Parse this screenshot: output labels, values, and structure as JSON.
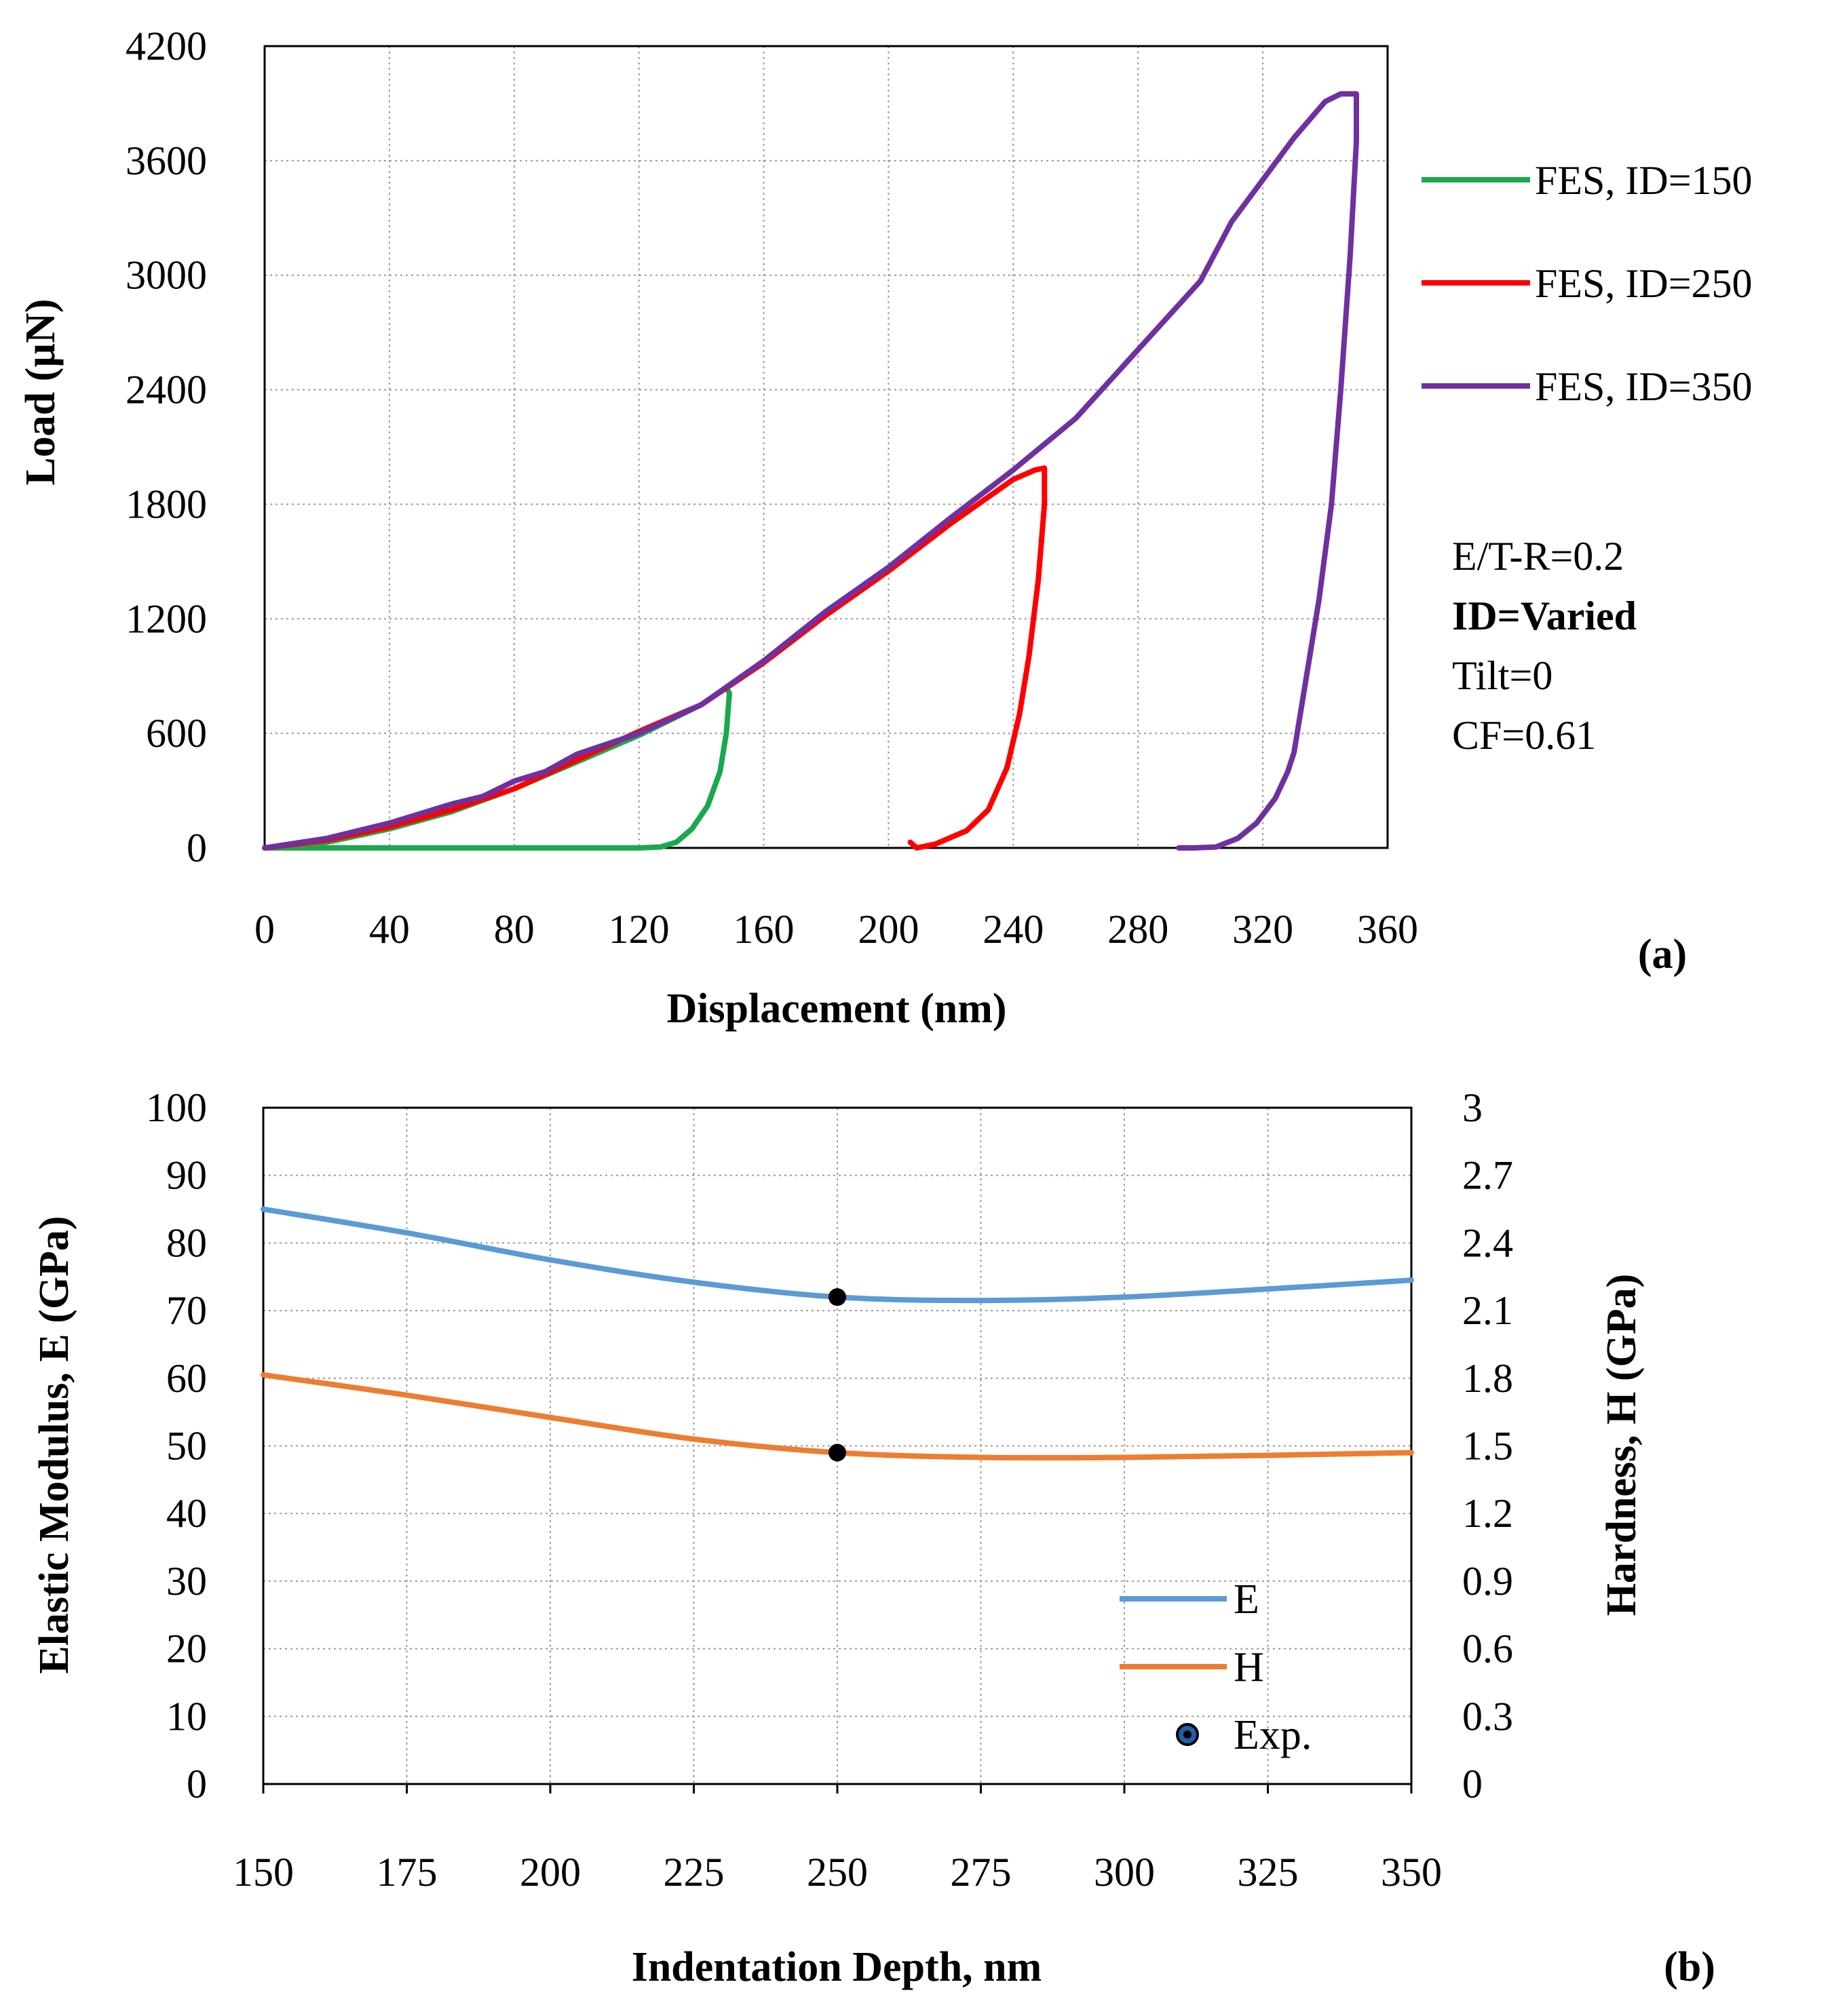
{
  "chart_data": [
    {
      "type": "line",
      "panel_label": "(a)",
      "xlabel": "Displacement (nm)",
      "ylabel": "Load (µN)",
      "xlim": [
        0,
        360
      ],
      "ylim": [
        0,
        4200
      ],
      "xticks": [
        "0",
        "40",
        "80",
        "120",
        "160",
        "200",
        "240",
        "280",
        "320",
        "360"
      ],
      "yticks": [
        "0",
        "600",
        "1200",
        "1800",
        "2400",
        "3000",
        "3600",
        "4200"
      ],
      "grid": true,
      "legend_position": "right",
      "annotation": {
        "line1": "E/T-R=0.2",
        "line2": "ID=Varied",
        "line3": "Tilt=0",
        "line4": "CF=0.61"
      },
      "series": [
        {
          "name": "FES, ID=150",
          "color": "#1aa84f",
          "points": [
            [
              0,
              0
            ],
            [
              20,
              30
            ],
            [
              40,
              100
            ],
            [
              60,
              190
            ],
            [
              80,
              310
            ],
            [
              100,
              450
            ],
            [
              120,
              590
            ],
            [
              140,
              750
            ],
            [
              148,
              840
            ],
            [
              149,
              810
            ],
            [
              148,
              600
            ],
            [
              146,
              400
            ],
            [
              142,
              220
            ],
            [
              137,
              100
            ],
            [
              132,
              30
            ],
            [
              127,
              5
            ],
            [
              120,
              0
            ],
            [
              80,
              0
            ],
            [
              40,
              0
            ],
            [
              0,
              0
            ]
          ]
        },
        {
          "name": "FES, ID=250",
          "color": "#ff0000",
          "points": [
            [
              0,
              0
            ],
            [
              20,
              40
            ],
            [
              40,
              110
            ],
            [
              60,
              200
            ],
            [
              80,
              310
            ],
            [
              100,
              460
            ],
            [
              120,
              610
            ],
            [
              140,
              750
            ],
            [
              160,
              970
            ],
            [
              180,
              1220
            ],
            [
              200,
              1450
            ],
            [
              220,
              1700
            ],
            [
              240,
              1930
            ],
            [
              247,
              1980
            ],
            [
              250,
              1990
            ],
            [
              250,
              1800
            ],
            [
              248,
              1400
            ],
            [
              245,
              1000
            ],
            [
              242,
              700
            ],
            [
              238,
              420
            ],
            [
              232,
              200
            ],
            [
              225,
              90
            ],
            [
              215,
              20
            ],
            [
              209,
              0
            ],
            [
              207,
              30
            ]
          ]
        },
        {
          "name": "FES, ID=350",
          "color": "#7030a0",
          "points": [
            [
              0,
              0
            ],
            [
              20,
              50
            ],
            [
              40,
              130
            ],
            [
              60,
              230
            ],
            [
              70,
              270
            ],
            [
              80,
              350
            ],
            [
              90,
              400
            ],
            [
              100,
              490
            ],
            [
              120,
              600
            ],
            [
              140,
              750
            ],
            [
              160,
              980
            ],
            [
              180,
              1240
            ],
            [
              200,
              1470
            ],
            [
              220,
              1730
            ],
            [
              240,
              1980
            ],
            [
              260,
              2250
            ],
            [
              280,
              2610
            ],
            [
              300,
              2970
            ],
            [
              310,
              3280
            ],
            [
              320,
              3500
            ],
            [
              330,
              3720
            ],
            [
              340,
              3910
            ],
            [
              345,
              3950
            ],
            [
              350,
              3950
            ],
            [
              350,
              3700
            ],
            [
              348,
              3100
            ],
            [
              345,
              2400
            ],
            [
              342,
              1800
            ],
            [
              338,
              1300
            ],
            [
              334,
              900
            ],
            [
              330,
              500
            ],
            [
              328,
              400
            ],
            [
              324,
              260
            ],
            [
              318,
              130
            ],
            [
              312,
              50
            ],
            [
              305,
              5
            ],
            [
              298,
              0
            ],
            [
              293,
              0
            ]
          ]
        }
      ]
    },
    {
      "type": "line",
      "panel_label": "(b)",
      "xlabel": "Indentation Depth, nm",
      "ylabel_left": "Elastic Modulus, E (GPa)",
      "ylabel_right": "Hardness, H (GPa)",
      "xlim": [
        150,
        350
      ],
      "ylim_left": [
        0,
        100
      ],
      "ylim_right": [
        0,
        3
      ],
      "xticks": [
        "150",
        "175",
        "200",
        "225",
        "250",
        "275",
        "300",
        "325",
        "350"
      ],
      "yticks_left": [
        "0",
        "10",
        "20",
        "30",
        "40",
        "50",
        "60",
        "70",
        "80",
        "90",
        "100"
      ],
      "yticks_right": [
        "0",
        "0.3",
        "0.6",
        "0.9",
        "1.2",
        "1.5",
        "1.8",
        "2.1",
        "2.4",
        "2.7",
        "3"
      ],
      "grid": true,
      "legend_position": "bottom-right",
      "series": [
        {
          "name": "E",
          "axis": "left",
          "color": "#5b9bd5",
          "x": [
            150,
            175,
            200,
            225,
            250,
            275,
            300,
            325,
            350
          ],
          "y": [
            85,
            81.5,
            77.5,
            74.2,
            72,
            71.5,
            72,
            73.2,
            74.5
          ]
        },
        {
          "name": "H",
          "axis": "left",
          "color": "#ed7d31",
          "x": [
            150,
            175,
            200,
            225,
            250,
            275,
            300,
            325,
            350
          ],
          "y": [
            60.5,
            57.5,
            54.2,
            51,
            49,
            48.3,
            48.3,
            48.6,
            49
          ]
        },
        {
          "name": "Exp.",
          "axis": "left",
          "type": "scatter",
          "color": "#000000",
          "x": [
            250,
            250
          ],
          "y": [
            72,
            49
          ]
        }
      ]
    }
  ]
}
